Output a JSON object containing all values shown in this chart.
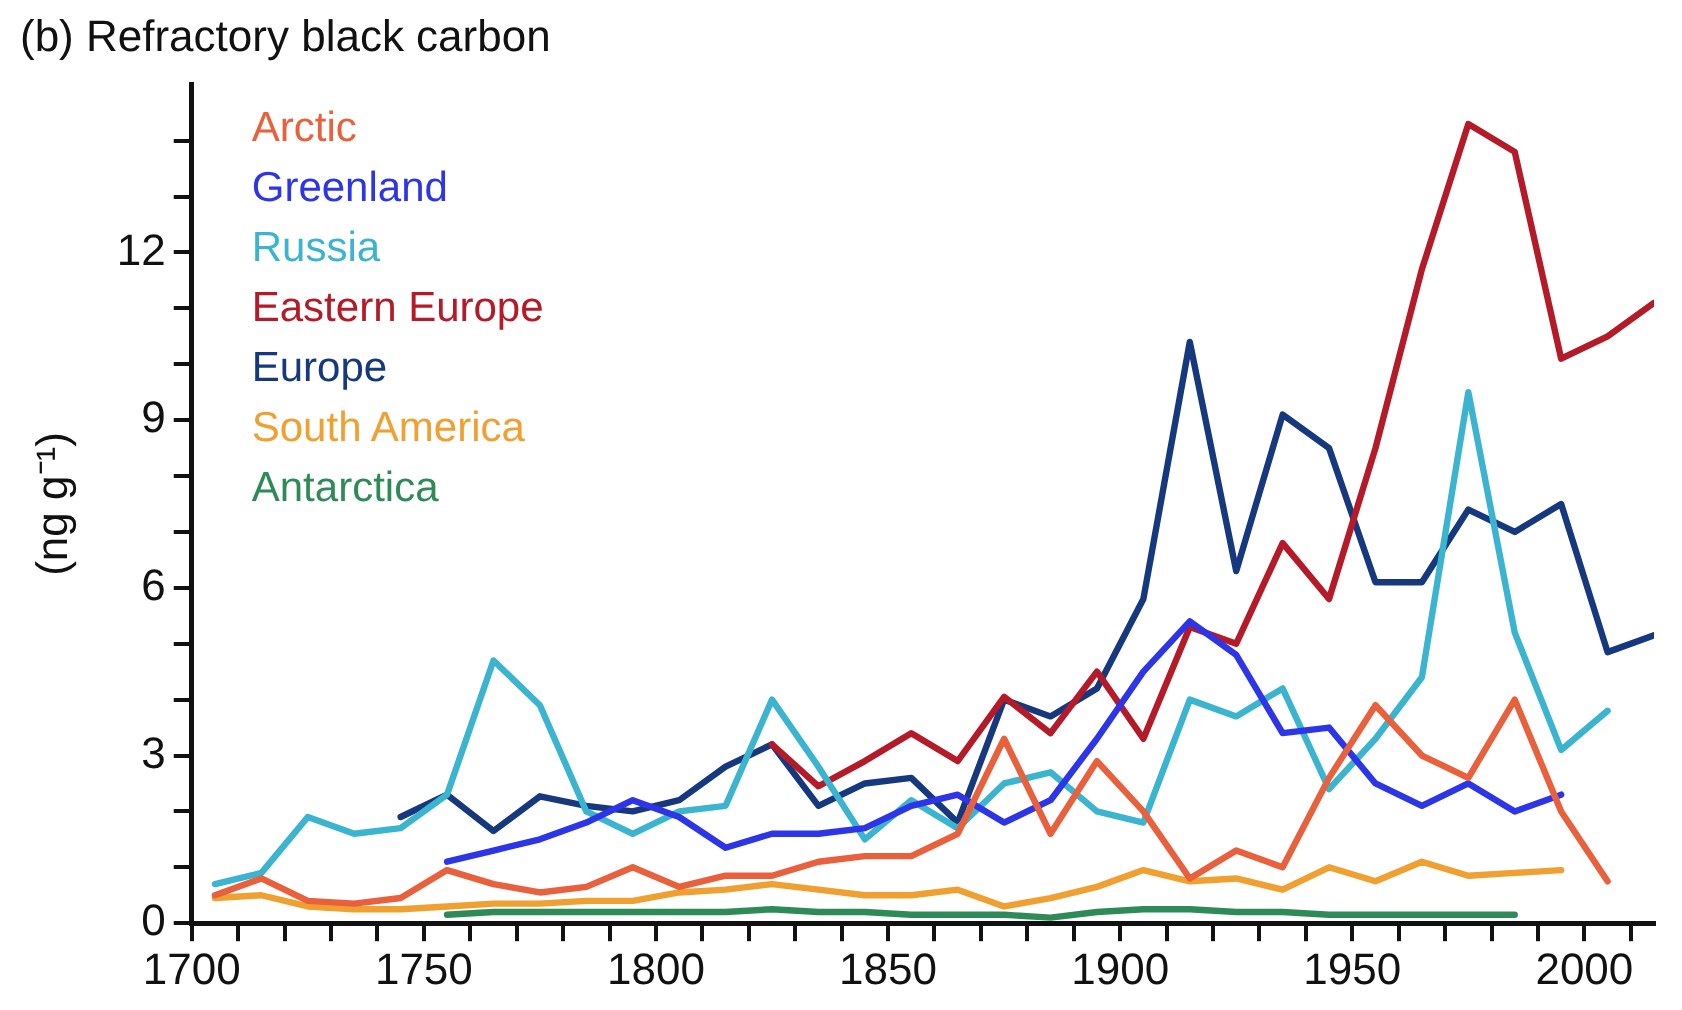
{
  "chart_data": {
    "type": "line",
    "title": "(b) Refractory black carbon",
    "ylabel": "(ng g⁻¹)",
    "legend": "top left",
    "grid": false,
    "marker": "none",
    "line_style": "solid",
    "xlim": [
      1700,
      2015
    ],
    "ylim": [
      0,
      15
    ],
    "xticks": [
      1700,
      {
        "value": 1710,
        "label": null
      },
      {
        "value": 1720,
        "label": null
      },
      {
        "value": 1730,
        "label": null
      },
      {
        "value": 1740,
        "label": null
      },
      1750,
      {
        "value": 1760,
        "label": null
      },
      {
        "value": 1770,
        "label": null
      },
      {
        "value": 1780,
        "label": null
      },
      {
        "value": 1790,
        "label": null
      },
      1800,
      {
        "value": 1810,
        "label": null
      },
      {
        "value": 1820,
        "label": null
      },
      {
        "value": 1830,
        "label": null
      },
      {
        "value": 1840,
        "label": null
      },
      1850,
      {
        "value": 1860,
        "label": null
      },
      {
        "value": 1870,
        "label": null
      },
      {
        "value": 1880,
        "label": null
      },
      {
        "value": 1890,
        "label": null
      },
      1900,
      {
        "value": 1910,
        "label": null
      },
      {
        "value": 1920,
        "label": null
      },
      {
        "value": 1930,
        "label": null
      },
      {
        "value": 1940,
        "label": null
      },
      1950,
      {
        "value": 1960,
        "label": null
      },
      {
        "value": 1970,
        "label": null
      },
      {
        "value": 1980,
        "label": null
      },
      {
        "value": 1990,
        "label": null
      },
      2000,
      {
        "value": 2010,
        "label": null
      }
    ],
    "yticks": [
      0,
      {
        "value": 1,
        "label": null
      },
      {
        "value": 2,
        "label": null
      },
      3,
      {
        "value": 4,
        "label": null
      },
      {
        "value": 5,
        "label": null
      },
      6,
      {
        "value": 7,
        "label": null
      },
      {
        "value": 8,
        "label": null
      },
      9,
      {
        "value": 10,
        "label": null
      },
      {
        "value": 11,
        "label": null
      },
      12,
      {
        "value": 13,
        "label": null
      },
      {
        "value": 14,
        "label": null
      }
    ],
    "series": [
      {
        "name": "Arctic",
        "color": "#e8603c",
        "x": [
          1705,
          1715,
          1725,
          1735,
          1745,
          1755,
          1765,
          1775,
          1785,
          1795,
          1805,
          1815,
          1825,
          1835,
          1845,
          1855,
          1865,
          1875,
          1885,
          1895,
          1905,
          1915,
          1925,
          1935,
          1945,
          1955,
          1965,
          1975,
          1985,
          1995,
          2005
        ],
        "values": [
          0.5,
          0.8,
          0.4,
          0.35,
          0.45,
          0.95,
          0.7,
          0.55,
          0.65,
          1.0,
          0.65,
          0.85,
          0.85,
          1.1,
          1.2,
          1.2,
          1.6,
          3.3,
          1.6,
          2.9,
          2.0,
          0.8,
          1.3,
          1.0,
          2.6,
          3.9,
          3.0,
          2.6,
          4.0,
          2.0,
          0.75
        ]
      },
      {
        "name": "Greenland",
        "color": "#2d35e8",
        "x": [
          1755,
          1765,
          1775,
          1785,
          1795,
          1805,
          1815,
          1825,
          1835,
          1845,
          1855,
          1865,
          1875,
          1885,
          1895,
          1905,
          1915,
          1925,
          1935,
          1945,
          1955,
          1965,
          1975,
          1985,
          1995
        ],
        "values": [
          1.1,
          1.3,
          1.5,
          1.8,
          2.2,
          1.9,
          1.35,
          1.6,
          1.6,
          1.7,
          2.1,
          2.3,
          1.8,
          2.2,
          3.3,
          4.5,
          5.4,
          4.8,
          3.4,
          3.5,
          2.5,
          2.1,
          2.5,
          2.0,
          2.3
        ]
      },
      {
        "name": "Russia",
        "color": "#3bb4d0",
        "x": [
          1705,
          1715,
          1725,
          1735,
          1745,
          1755,
          1765,
          1775,
          1785,
          1795,
          1805,
          1815,
          1825,
          1835,
          1845,
          1855,
          1865,
          1875,
          1885,
          1895,
          1905,
          1915,
          1925,
          1935,
          1945,
          1955,
          1965,
          1975,
          1985,
          1995,
          2005
        ],
        "values": [
          0.7,
          0.9,
          1.9,
          1.6,
          1.7,
          2.3,
          4.7,
          3.9,
          2.0,
          1.6,
          2.0,
          2.1,
          4.0,
          2.8,
          1.5,
          2.2,
          1.7,
          2.5,
          2.7,
          2.0,
          1.8,
          4.0,
          3.7,
          4.2,
          2.4,
          3.3,
          4.4,
          9.5,
          5.2,
          3.1,
          3.8
        ]
      },
      {
        "name": "Eastern Europe",
        "color": "#b51a28",
        "x": [
          1825,
          1835,
          1845,
          1855,
          1865,
          1875,
          1885,
          1895,
          1905,
          1915,
          1925,
          1935,
          1945,
          1955,
          1965,
          1975,
          1985,
          1995,
          2005,
          2015
        ],
        "values": [
          3.2,
          2.45,
          2.9,
          3.4,
          2.9,
          4.05,
          3.4,
          4.5,
          3.3,
          5.3,
          5.0,
          6.8,
          5.8,
          8.5,
          11.7,
          14.3,
          13.8,
          10.1,
          10.5,
          11.1
        ]
      },
      {
        "name": "Europe",
        "color": "#16387e",
        "x": [
          1745,
          1755,
          1765,
          1775,
          1785,
          1795,
          1805,
          1815,
          1825,
          1835,
          1845,
          1855,
          1865,
          1875,
          1885,
          1895,
          1905,
          1915,
          1925,
          1935,
          1945,
          1955,
          1965,
          1975,
          1985,
          1995,
          2005,
          2015
        ],
        "values": [
          1.9,
          2.3,
          1.65,
          2.27,
          2.1,
          2.0,
          2.2,
          2.8,
          3.2,
          2.1,
          2.5,
          2.6,
          1.8,
          4.0,
          3.7,
          4.2,
          5.8,
          10.4,
          6.3,
          9.1,
          8.5,
          6.1,
          6.1,
          7.4,
          7.0,
          7.5,
          4.85,
          5.15
        ]
      },
      {
        "name": "South America",
        "color": "#f0a030",
        "x": [
          1705,
          1715,
          1725,
          1735,
          1745,
          1755,
          1765,
          1775,
          1785,
          1795,
          1805,
          1815,
          1825,
          1835,
          1845,
          1855,
          1865,
          1875,
          1885,
          1895,
          1905,
          1915,
          1925,
          1935,
          1945,
          1955,
          1965,
          1975,
          1985,
          1995
        ],
        "values": [
          0.45,
          0.5,
          0.3,
          0.25,
          0.25,
          0.3,
          0.35,
          0.35,
          0.4,
          0.4,
          0.55,
          0.6,
          0.7,
          0.6,
          0.5,
          0.5,
          0.6,
          0.3,
          0.45,
          0.65,
          0.95,
          0.75,
          0.8,
          0.6,
          1.0,
          0.75,
          1.1,
          0.85,
          0.9,
          0.95
        ]
      },
      {
        "name": "Antarctica",
        "color": "#2e8b57",
        "x": [
          1755,
          1765,
          1775,
          1785,
          1795,
          1805,
          1815,
          1825,
          1835,
          1845,
          1855,
          1865,
          1875,
          1885,
          1895,
          1905,
          1915,
          1925,
          1935,
          1945,
          1955,
          1965,
          1975,
          1985
        ],
        "values": [
          0.15,
          0.2,
          0.2,
          0.2,
          0.2,
          0.2,
          0.2,
          0.25,
          0.2,
          0.2,
          0.15,
          0.15,
          0.15,
          0.1,
          0.2,
          0.25,
          0.25,
          0.2,
          0.2,
          0.15,
          0.15,
          0.15,
          0.15,
          0.15
        ]
      }
    ]
  }
}
